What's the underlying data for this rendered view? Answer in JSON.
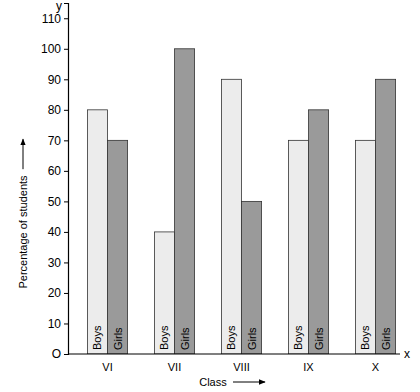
{
  "chart_data": {
    "type": "bar",
    "categories": [
      "VI",
      "VII",
      "VIII",
      "IX",
      "X"
    ],
    "series": [
      {
        "name": "Boys",
        "color": "#ececec",
        "values": [
          80,
          40,
          90,
          70,
          70
        ]
      },
      {
        "name": "Girls",
        "color": "#9a9a9a",
        "values": [
          70,
          100,
          50,
          80,
          90
        ]
      }
    ],
    "ylim": [
      0,
      115
    ],
    "yticks": [
      {
        "value": 0,
        "label": "O"
      },
      10,
      20,
      30,
      40,
      50,
      60,
      70,
      80,
      90,
      100,
      110
    ],
    "x_label": "Class",
    "y_label": "Percentage of students",
    "annotations": [
      "y",
      "x"
    ]
  }
}
